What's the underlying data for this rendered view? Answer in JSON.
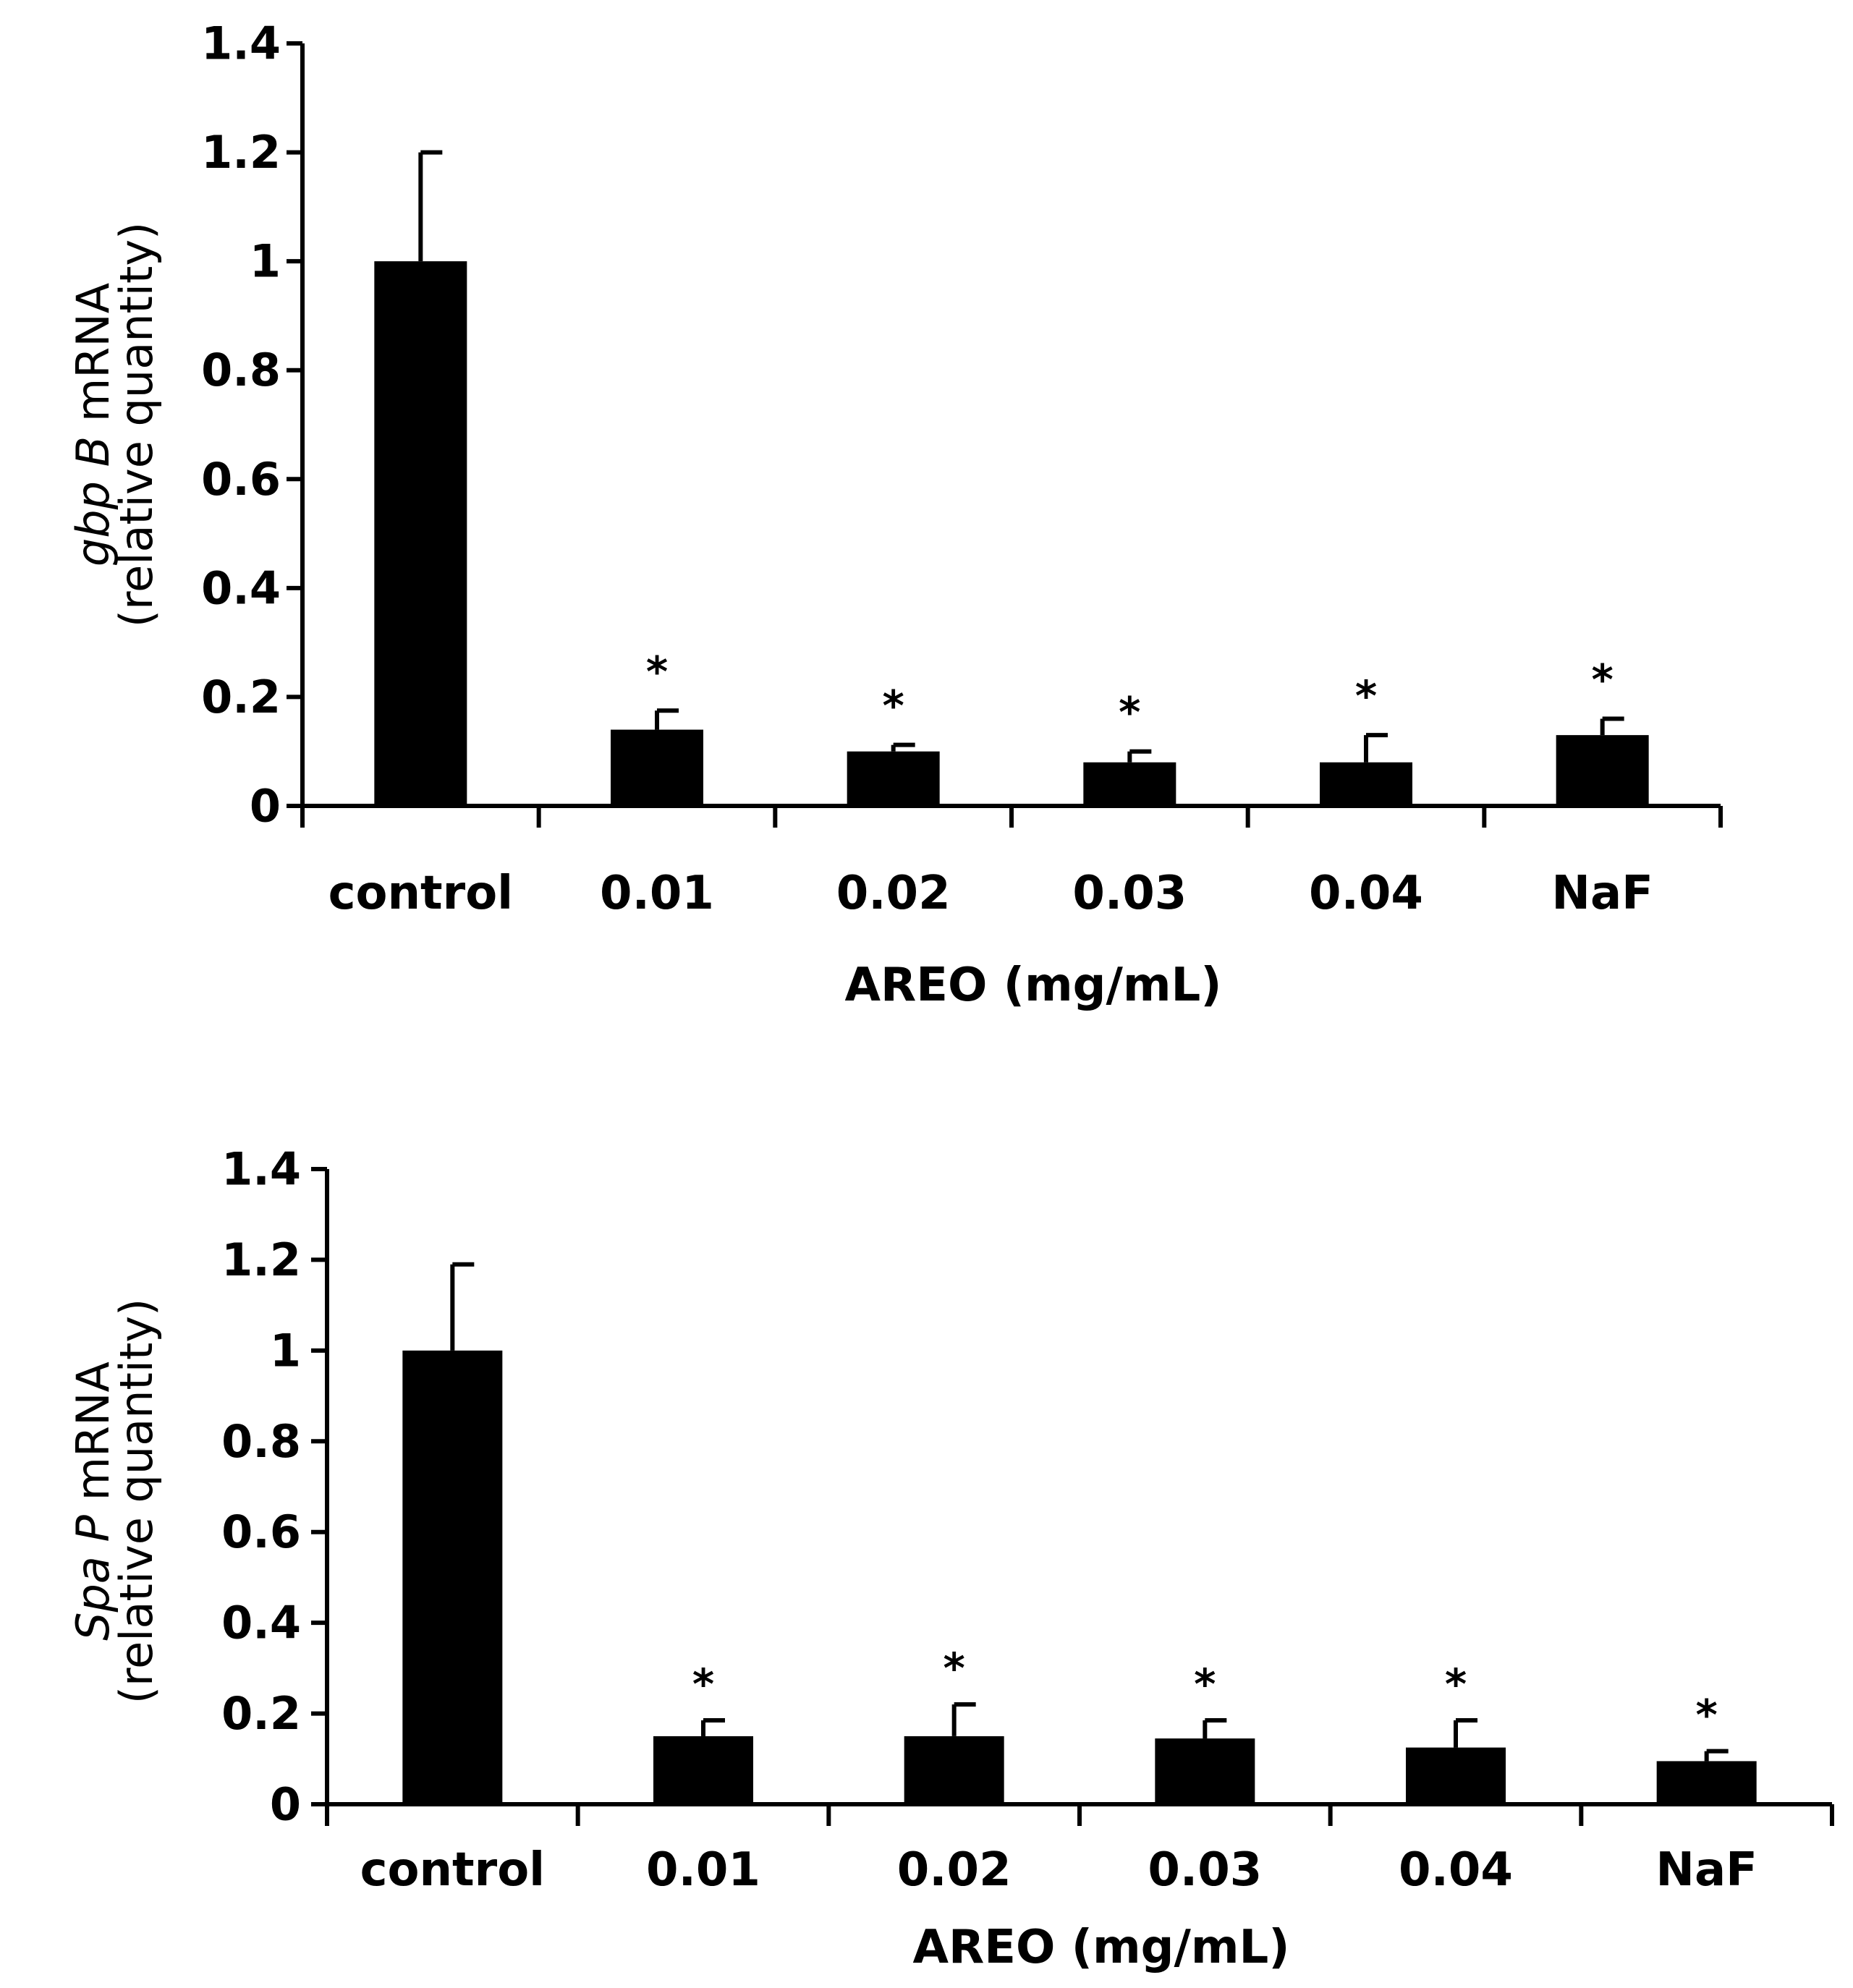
{
  "chart_data": [
    {
      "type": "bar",
      "title": "",
      "ylabel_gene": "gbp B",
      "ylabel_suffix": "mRNA",
      "ylabel_line2": "(relative quantity)",
      "xlabel": "AREO (mg/mL)",
      "ylim": [
        0,
        1.4
      ],
      "yticks": [
        0,
        0.2,
        0.4,
        0.6,
        0.8,
        1,
        1.2,
        1.4
      ],
      "ytick_labels": [
        "0",
        "0.2",
        "0.4",
        "0.6",
        "0.8",
        "1",
        "1.2",
        "1.4"
      ],
      "categories": [
        "control",
        "0.01",
        "0.02",
        "0.03",
        "0.04",
        "NaF"
      ],
      "values": [
        1.0,
        0.14,
        0.1,
        0.08,
        0.08,
        0.13
      ],
      "error_upper": [
        0.2,
        0.035,
        0.012,
        0.02,
        0.05,
        0.03
      ],
      "significance": [
        "",
        "*",
        "*",
        "*",
        "*",
        "*"
      ],
      "grid": false,
      "bar_color": "#000000"
    },
    {
      "type": "bar",
      "title": "",
      "ylabel_gene": "Spa P",
      "ylabel_suffix": "mRNA",
      "ylabel_line2": "(relative quantity)",
      "xlabel": "AREO (mg/mL)",
      "ylim": [
        0,
        1.4
      ],
      "yticks": [
        0,
        0.2,
        0.4,
        0.6,
        0.8,
        1,
        1.2,
        1.4
      ],
      "ytick_labels": [
        "0",
        "0.2",
        "0.4",
        "0.6",
        "0.8",
        "1",
        "1.2",
        "1.4"
      ],
      "categories": [
        "control",
        "0.01",
        "0.02",
        "0.03",
        "0.04",
        "NaF"
      ],
      "values": [
        1.0,
        0.15,
        0.15,
        0.145,
        0.125,
        0.095
      ],
      "error_upper": [
        0.19,
        0.035,
        0.07,
        0.04,
        0.06,
        0.022
      ],
      "significance": [
        "",
        "*",
        "*",
        "*",
        "*",
        "*"
      ],
      "grid": false,
      "bar_color": "#000000"
    }
  ]
}
